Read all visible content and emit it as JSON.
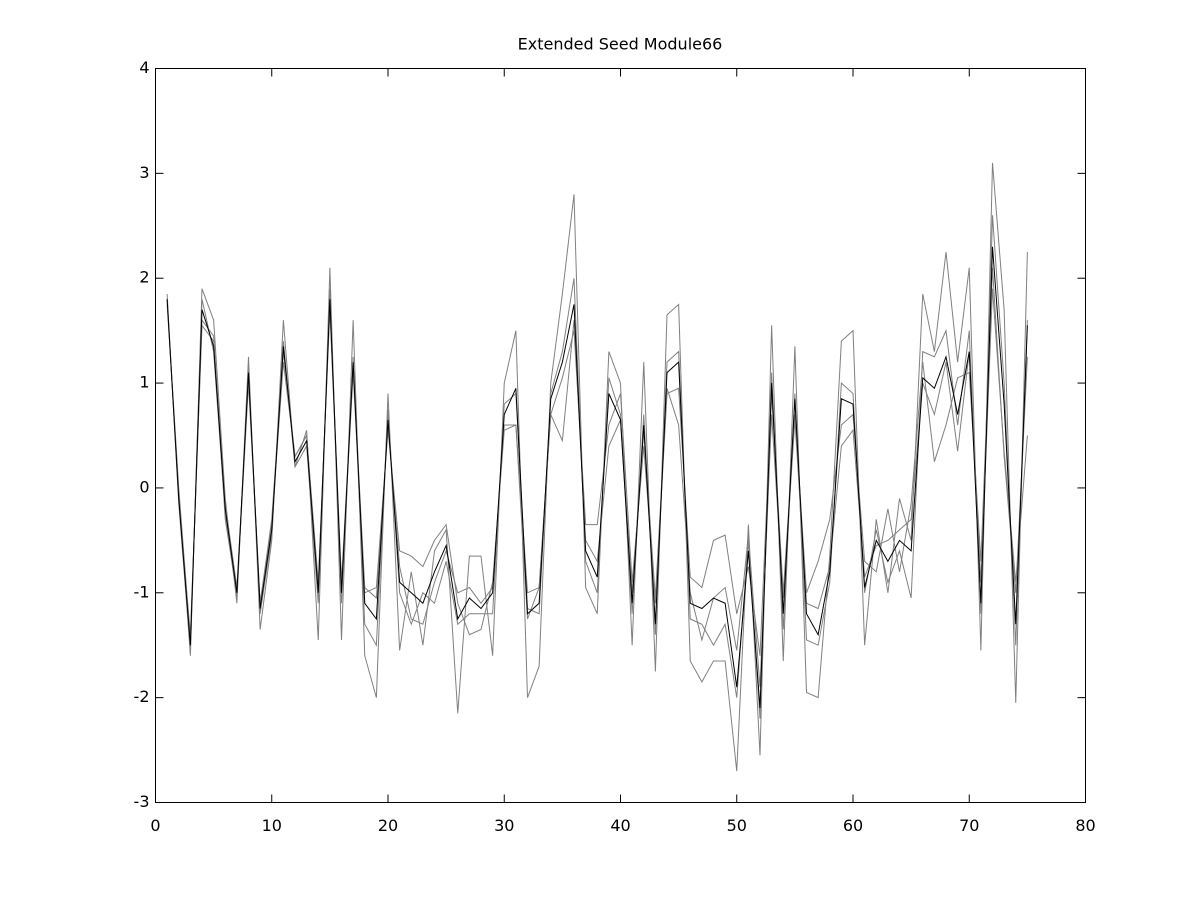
{
  "chart_data": {
    "type": "line",
    "title": "Extended Seed Module66",
    "x": [
      1,
      2,
      3,
      4,
      5,
      6,
      7,
      8,
      9,
      10,
      11,
      12,
      13,
      14,
      15,
      16,
      17,
      18,
      19,
      20,
      21,
      22,
      23,
      24,
      25,
      26,
      27,
      28,
      29,
      30,
      31,
      32,
      33,
      34,
      35,
      36,
      37,
      38,
      39,
      40,
      41,
      42,
      43,
      44,
      45,
      46,
      47,
      48,
      49,
      50,
      51,
      52,
      53,
      54,
      55,
      56,
      57,
      58,
      59,
      60,
      61,
      62,
      63,
      64,
      65,
      66,
      67,
      68,
      69,
      70,
      71,
      72,
      73,
      74,
      75
    ],
    "xlim": [
      0,
      80
    ],
    "xticks": [
      0,
      10,
      20,
      30,
      40,
      50,
      60,
      70,
      80
    ],
    "ylim": [
      -3,
      4
    ],
    "yticks": [
      -3,
      -2,
      -1,
      0,
      1,
      2,
      3,
      4
    ],
    "grid": false,
    "series": [
      {
        "color": "#808080",
        "values": [
          1.8,
          -0.05,
          -1.6,
          1.9,
          1.6,
          -0.1,
          -1.1,
          1.25,
          -1.35,
          -0.5,
          1.6,
          0.2,
          0.55,
          -1.45,
          2.1,
          -1.45,
          1.6,
          -1.6,
          -2.0,
          0.9,
          -1.55,
          -0.8,
          -1.5,
          -0.6,
          -0.4,
          -2.15,
          -0.65,
          -0.65,
          -1.6,
          1.0,
          1.5,
          -2.0,
          -1.7,
          1.0,
          1.85,
          2.8,
          -0.95,
          -1.2,
          1.3,
          1.0,
          -1.5,
          1.2,
          -1.75,
          1.65,
          1.75,
          -1.65,
          -1.85,
          -1.65,
          -1.65,
          -2.7,
          -0.35,
          -2.55,
          1.55,
          -1.65,
          1.35,
          -1.95,
          -2.0,
          -0.65,
          1.4,
          1.5,
          -1.5,
          -0.3,
          -1.0,
          -0.1,
          -0.5,
          1.85,
          1.3,
          2.25,
          1.2,
          2.1,
          -1.55,
          3.1,
          1.7,
          -2.05,
          2.25
        ]
      },
      {
        "color": "#808080",
        "values": [
          1.75,
          0,
          -1.45,
          1.6,
          1.45,
          -0.3,
          -1.0,
          1.0,
          -1.1,
          -0.35,
          1.2,
          0.3,
          0.5,
          -0.9,
          1.7,
          -0.95,
          1.1,
          -1.0,
          -0.95,
          0.55,
          -0.6,
          -0.65,
          -0.75,
          -0.5,
          -0.35,
          -1.1,
          -1.4,
          -1.35,
          -0.9,
          0.55,
          0.6,
          -1.0,
          -0.95,
          0.7,
          1.05,
          1.5,
          -0.35,
          -0.35,
          0.6,
          0.9,
          -0.9,
          0.4,
          -1.1,
          0.9,
          0.95,
          -0.85,
          -0.95,
          -0.5,
          -0.45,
          -1.2,
          -0.75,
          -1.6,
          0.9,
          -1.0,
          0.7,
          -1.0,
          -0.7,
          -0.3,
          0.6,
          0.7,
          -0.7,
          -0.8,
          -0.2,
          -0.8,
          -0.15,
          1.2,
          0.25,
          0.6,
          1.05,
          1.1,
          -0.7,
          2.1,
          0.3,
          -1.0,
          1.25
        ]
      },
      {
        "color": "#808080",
        "values": [
          1.85,
          -0.15,
          -1.55,
          1.8,
          1.3,
          -0.25,
          -1.05,
          1.15,
          -1.2,
          -0.45,
          1.4,
          0.2,
          0.4,
          -1.1,
          1.9,
          -1.1,
          1.25,
          -1.3,
          -1.5,
          0.75,
          -1.0,
          -1.3,
          -1.0,
          -1.1,
          -0.7,
          -1.3,
          -1.2,
          -1.2,
          -1.2,
          0.8,
          0.9,
          -1.15,
          -1.2,
          0.9,
          1.3,
          2.0,
          -0.7,
          -1.0,
          1.05,
          0.7,
          -1.2,
          0.7,
          -1.4,
          1.2,
          1.3,
          -1.25,
          -1.3,
          -1.5,
          -1.3,
          -2.0,
          -0.5,
          -2.2,
          1.1,
          -1.35,
          0.9,
          -1.45,
          -1.5,
          -0.9,
          1.0,
          0.9,
          -1.0,
          -0.4,
          -0.9,
          -0.6,
          -1.05,
          1.3,
          1.25,
          1.5,
          0.6,
          1.5,
          -1.2,
          2.6,
          1.0,
          -1.5,
          1.6
        ]
      },
      {
        "color": "#808080",
        "values": [
          1.8,
          -0.1,
          -1.4,
          1.55,
          1.4,
          -0.15,
          -0.95,
          1.05,
          -1.1,
          -0.3,
          1.3,
          0.3,
          0.5,
          -0.95,
          1.75,
          -0.9,
          1.15,
          -0.95,
          -1.05,
          0.6,
          -0.75,
          -1.25,
          -1.3,
          -0.9,
          -0.6,
          -1.0,
          -0.95,
          -1.1,
          -0.95,
          0.6,
          0.6,
          -1.25,
          -0.95,
          0.7,
          0.45,
          1.6,
          -0.5,
          -0.7,
          0.4,
          0.65,
          -1.0,
          0.55,
          -1.05,
          0.95,
          0.6,
          -1.0,
          -1.45,
          -1.05,
          -0.95,
          -1.55,
          -0.45,
          -1.9,
          0.7,
          -1.05,
          0.65,
          -1.1,
          -1.15,
          -0.75,
          0.4,
          0.55,
          -0.85,
          -0.55,
          -0.5,
          -0.4,
          -0.3,
          1.0,
          0.7,
          1.2,
          0.35,
          1.3,
          -0.9,
          1.9,
          0.35,
          -0.9,
          0.5
        ]
      },
      {
        "color": "#000000",
        "values": [
          1.8,
          -0.1,
          -1.5,
          1.7,
          1.35,
          -0.2,
          -1.0,
          1.1,
          -1.15,
          -0.4,
          1.35,
          0.25,
          0.45,
          -1.0,
          1.8,
          -1.0,
          1.2,
          -1.1,
          -1.25,
          0.65,
          -0.9,
          -1.0,
          -1.1,
          -0.8,
          -0.55,
          -1.25,
          -1.05,
          -1.15,
          -1.0,
          0.7,
          0.95,
          -1.2,
          -1.1,
          0.85,
          1.2,
          1.75,
          -0.6,
          -0.85,
          0.9,
          0.65,
          -1.1,
          0.6,
          -1.3,
          1.1,
          1.2,
          -1.1,
          -1.15,
          -1.05,
          -1.1,
          -1.9,
          -0.6,
          -2.1,
          1.0,
          -1.2,
          0.85,
          -1.2,
          -1.4,
          -0.8,
          0.85,
          0.8,
          -0.95,
          -0.5,
          -0.7,
          -0.5,
          -0.6,
          1.05,
          0.95,
          1.25,
          0.7,
          1.3,
          -1.1,
          2.3,
          0.8,
          -1.3,
          1.55
        ]
      }
    ]
  }
}
